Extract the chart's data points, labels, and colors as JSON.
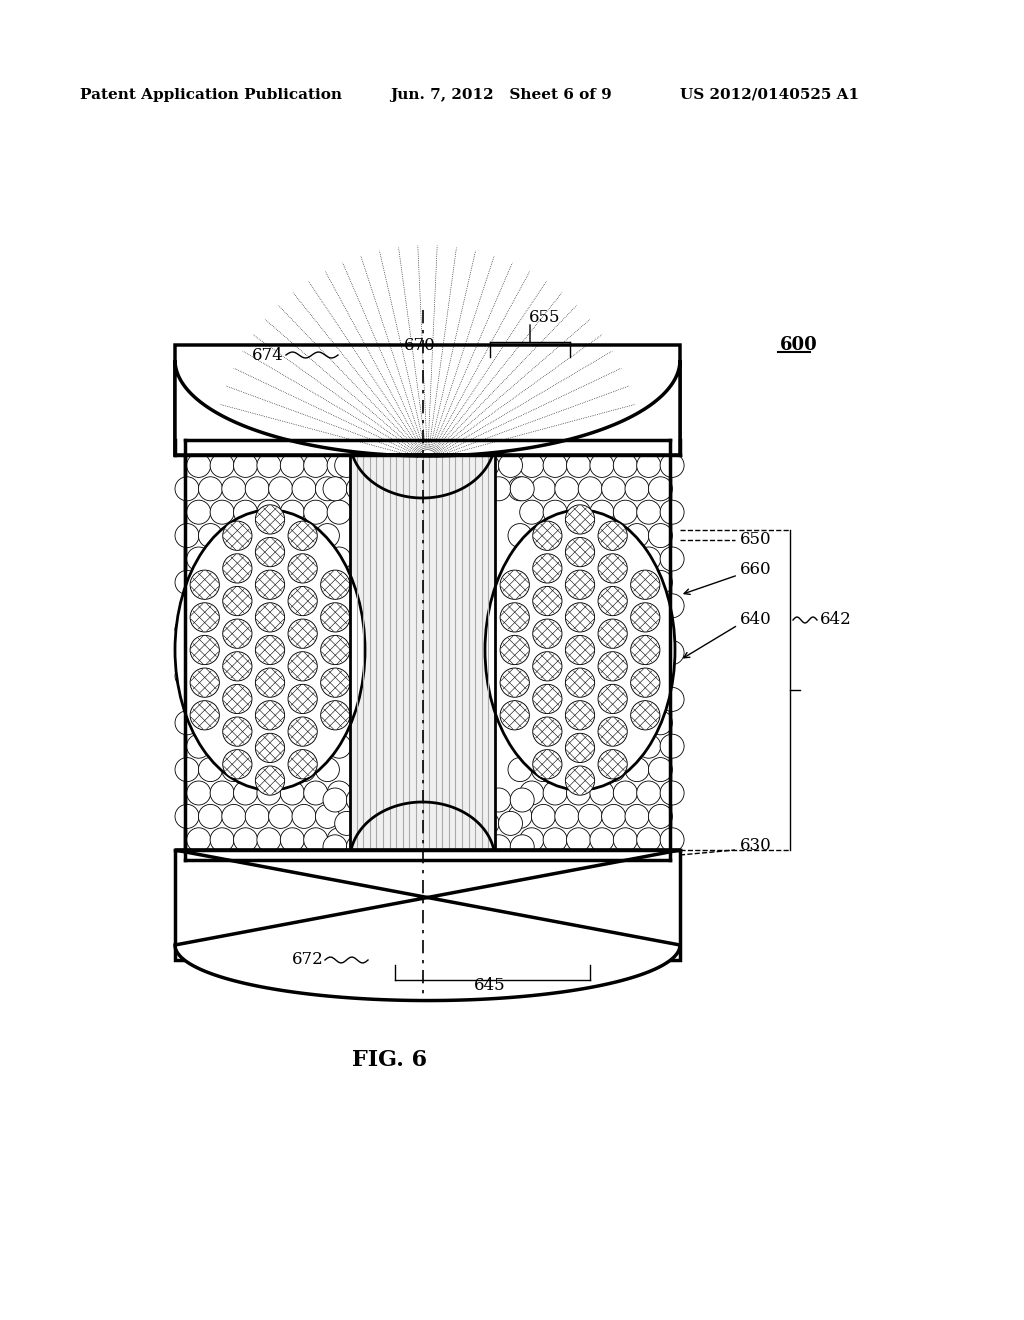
{
  "bg_color": "#ffffff",
  "line_color": "#000000",
  "header_left": "Patent Application Publication",
  "header_mid": "Jun. 7, 2012   Sheet 6 of 9",
  "header_right": "US 2012/0140525 A1",
  "fig_label": "FIG. 6",
  "ref_600": "600",
  "ref_655": "655",
  "ref_670": "670",
  "ref_674": "674",
  "ref_650": "650",
  "ref_660": "660",
  "ref_640": "640",
  "ref_642": "642",
  "ref_630": "630",
  "ref_645": "645",
  "ref_672": "672"
}
